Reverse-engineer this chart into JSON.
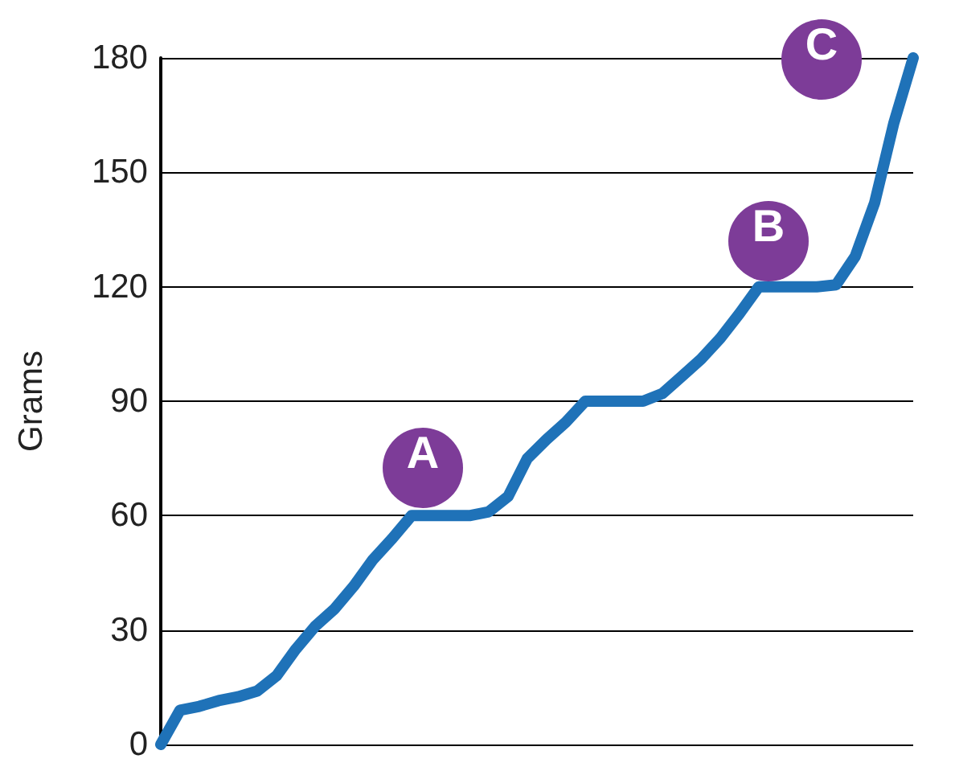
{
  "chart_data": {
    "type": "line",
    "ylabel": "Grams",
    "categories": [
      null,
      null,
      null,
      null,
      null,
      null,
      null,
      null,
      null,
      null,
      null,
      null,
      null,
      null,
      null,
      null,
      null,
      null,
      null,
      null,
      null,
      null,
      null,
      null,
      null,
      null,
      null,
      null,
      null,
      null,
      null,
      null,
      null,
      null,
      null,
      null,
      null,
      null,
      null,
      null
    ],
    "series": [
      {
        "color": "#1f72b8",
        "values": [
          0,
          9,
          10,
          11.5,
          12.5,
          14,
          18,
          25,
          31,
          35.5,
          41.5,
          48.5,
          54,
          60,
          60,
          60,
          60,
          61,
          65,
          75,
          80,
          84.5,
          90,
          90,
          90,
          90,
          92,
          96.5,
          101,
          106.5,
          113,
          120,
          120,
          120,
          120,
          120.5,
          128,
          142,
          163,
          180
        ]
      }
    ],
    "ylim": [
      0,
      180
    ],
    "yticks": [
      0,
      30,
      60,
      90,
      120,
      150,
      180
    ],
    "grid": "y",
    "line_style": "solid",
    "tick_labels": "y",
    "annotations": [
      "A",
      "B",
      "C"
    ]
  }
}
